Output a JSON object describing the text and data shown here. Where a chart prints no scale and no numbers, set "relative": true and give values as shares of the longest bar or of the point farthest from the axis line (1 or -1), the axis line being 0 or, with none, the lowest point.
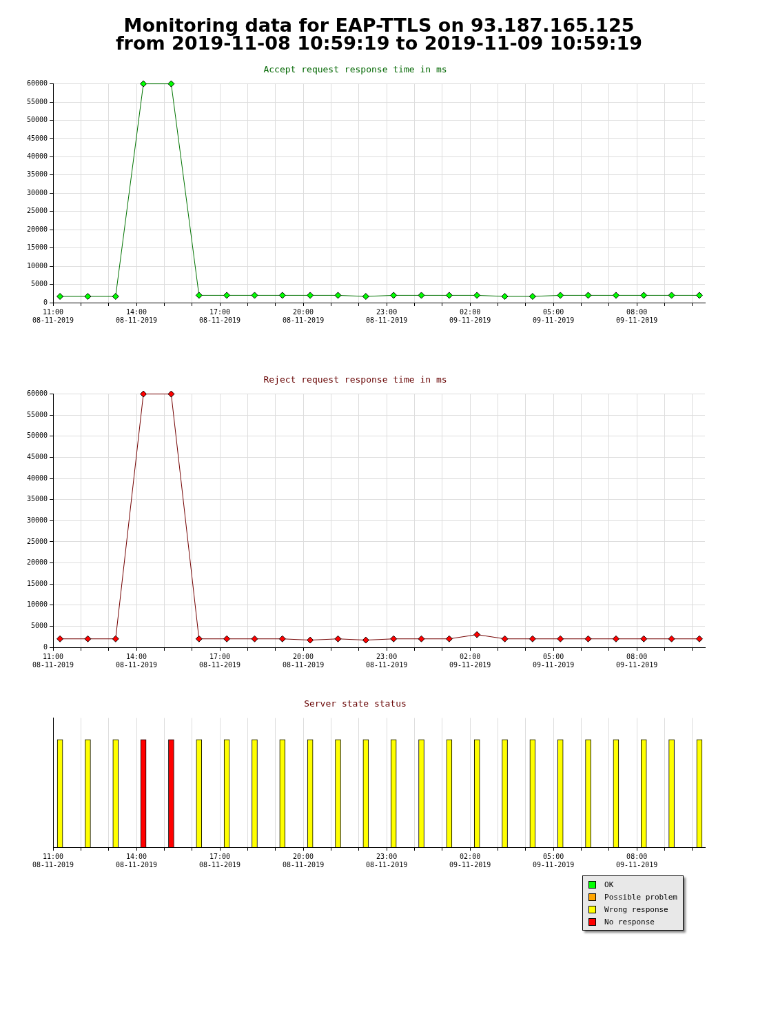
{
  "chart_data": [
    {
      "type": "other",
      "title": "Monitoring data for EAP-TTLS on 93.187.165.125",
      "subtitle": "from 2019-11-08 10:59:19 to 2019-11-09 10:59:19"
    },
    {
      "type": "line",
      "title": "Accept request response time in ms",
      "marker": "diamond",
      "grid": true,
      "legend": false,
      "x": [
        "2019-11-08T11:15",
        "2019-11-08T12:15",
        "2019-11-08T13:15",
        "2019-11-08T14:15",
        "2019-11-08T15:15",
        "2019-11-08T16:15",
        "2019-11-08T17:15",
        "2019-11-08T18:15",
        "2019-11-08T19:15",
        "2019-11-08T20:15",
        "2019-11-08T21:15",
        "2019-11-08T22:15",
        "2019-11-08T23:15",
        "2019-11-09T00:15",
        "2019-11-09T01:15",
        "2019-11-09T02:15",
        "2019-11-09T03:15",
        "2019-11-09T04:15",
        "2019-11-09T05:15",
        "2019-11-09T06:15",
        "2019-11-09T07:15",
        "2019-11-09T08:15",
        "2019-11-09T09:15",
        "2019-11-09T10:15"
      ],
      "xlim": [
        "2019-11-08T11:00",
        "2019-11-09T10:27"
      ],
      "xticks": [
        {
          "value": "2019-11-08T11:00",
          "label": "11:00\n08-11-2019"
        },
        {
          "value": "2019-11-08T12:00",
          "label": null
        },
        {
          "value": "2019-11-08T13:00",
          "label": null
        },
        {
          "value": "2019-11-08T14:00",
          "label": "14:00\n08-11-2019"
        },
        {
          "value": "2019-11-08T15:00",
          "label": null
        },
        {
          "value": "2019-11-08T16:00",
          "label": null
        },
        {
          "value": "2019-11-08T17:00",
          "label": "17:00\n08-11-2019"
        },
        {
          "value": "2019-11-08T18:00",
          "label": null
        },
        {
          "value": "2019-11-08T19:00",
          "label": null
        },
        {
          "value": "2019-11-08T20:00",
          "label": "20:00\n08-11-2019"
        },
        {
          "value": "2019-11-08T21:00",
          "label": null
        },
        {
          "value": "2019-11-08T22:00",
          "label": null
        },
        {
          "value": "2019-11-08T23:00",
          "label": "23:00\n08-11-2019"
        },
        {
          "value": "2019-11-09T00:00",
          "label": null
        },
        {
          "value": "2019-11-09T01:00",
          "label": null
        },
        {
          "value": "2019-11-09T02:00",
          "label": "02:00\n09-11-2019"
        },
        {
          "value": "2019-11-09T03:00",
          "label": null
        },
        {
          "value": "2019-11-09T04:00",
          "label": null
        },
        {
          "value": "2019-11-09T05:00",
          "label": "05:00\n09-11-2019"
        },
        {
          "value": "2019-11-09T06:00",
          "label": null
        },
        {
          "value": "2019-11-09T07:00",
          "label": null
        },
        {
          "value": "2019-11-09T08:00",
          "label": "08:00\n09-11-2019"
        },
        {
          "value": "2019-11-09T09:00",
          "label": null
        },
        {
          "value": "2019-11-09T10:00",
          "label": null
        }
      ],
      "ylim": [
        0,
        60000
      ],
      "yticks": [
        0,
        5000,
        10000,
        15000,
        20000,
        25000,
        30000,
        35000,
        40000,
        45000,
        50000,
        55000,
        60000
      ],
      "series": [
        {
          "color": "#00ff00",
          "values": [
            1700,
            1700,
            1700,
            60000,
            60000,
            2000,
            2000,
            2000,
            2000,
            2000,
            2000,
            1700,
            2000,
            2000,
            2000,
            2000,
            1700,
            1700,
            2000,
            2000,
            2000,
            2000,
            2000,
            2000
          ]
        }
      ]
    },
    {
      "type": "line",
      "title": "Reject request response time in ms",
      "marker": "diamond",
      "grid": true,
      "legend": false,
      "x": [
        "2019-11-08T11:15",
        "2019-11-08T12:15",
        "2019-11-08T13:15",
        "2019-11-08T14:15",
        "2019-11-08T15:15",
        "2019-11-08T16:15",
        "2019-11-08T17:15",
        "2019-11-08T18:15",
        "2019-11-08T19:15",
        "2019-11-08T20:15",
        "2019-11-08T21:15",
        "2019-11-08T22:15",
        "2019-11-08T23:15",
        "2019-11-09T00:15",
        "2019-11-09T01:15",
        "2019-11-09T02:15",
        "2019-11-09T03:15",
        "2019-11-09T04:15",
        "2019-11-09T05:15",
        "2019-11-09T06:15",
        "2019-11-09T07:15",
        "2019-11-09T08:15",
        "2019-11-09T09:15",
        "2019-11-09T10:15"
      ],
      "xlim": [
        "2019-11-08T11:00",
        "2019-11-09T10:27"
      ],
      "xticks": [
        {
          "value": "2019-11-08T11:00",
          "label": "11:00\n08-11-2019"
        },
        {
          "value": "2019-11-08T12:00",
          "label": null
        },
        {
          "value": "2019-11-08T13:00",
          "label": null
        },
        {
          "value": "2019-11-08T14:00",
          "label": "14:00\n08-11-2019"
        },
        {
          "value": "2019-11-08T15:00",
          "label": null
        },
        {
          "value": "2019-11-08T16:00",
          "label": null
        },
        {
          "value": "2019-11-08T17:00",
          "label": "17:00\n08-11-2019"
        },
        {
          "value": "2019-11-08T18:00",
          "label": null
        },
        {
          "value": "2019-11-08T19:00",
          "label": null
        },
        {
          "value": "2019-11-08T20:00",
          "label": "20:00\n08-11-2019"
        },
        {
          "value": "2019-11-08T21:00",
          "label": null
        },
        {
          "value": "2019-11-08T22:00",
          "label": null
        },
        {
          "value": "2019-11-08T23:00",
          "label": "23:00\n08-11-2019"
        },
        {
          "value": "2019-11-09T00:00",
          "label": null
        },
        {
          "value": "2019-11-09T01:00",
          "label": null
        },
        {
          "value": "2019-11-09T02:00",
          "label": "02:00\n09-11-2019"
        },
        {
          "value": "2019-11-09T03:00",
          "label": null
        },
        {
          "value": "2019-11-09T04:00",
          "label": null
        },
        {
          "value": "2019-11-09T05:00",
          "label": "05:00\n09-11-2019"
        },
        {
          "value": "2019-11-09T06:00",
          "label": null
        },
        {
          "value": "2019-11-09T07:00",
          "label": null
        },
        {
          "value": "2019-11-09T08:00",
          "label": "08:00\n09-11-2019"
        },
        {
          "value": "2019-11-09T09:00",
          "label": null
        },
        {
          "value": "2019-11-09T10:00",
          "label": null
        }
      ],
      "ylim": [
        0,
        60000
      ],
      "yticks": [
        0,
        5000,
        10000,
        15000,
        20000,
        25000,
        30000,
        35000,
        40000,
        45000,
        50000,
        55000,
        60000
      ],
      "series": [
        {
          "color": "#ff0000",
          "values": [
            2000,
            2000,
            2000,
            60000,
            60000,
            2000,
            2000,
            2000,
            2000,
            1700,
            2000,
            1700,
            2000,
            2000,
            2000,
            3000,
            2000,
            2000,
            2000,
            2000,
            2000,
            2000,
            2000,
            2000
          ]
        }
      ]
    },
    {
      "type": "bar",
      "title": "Server state status",
      "relative": true,
      "grid": "x",
      "legend": "bottom right",
      "x": [
        "2019-11-08T11:15",
        "2019-11-08T12:15",
        "2019-11-08T13:15",
        "2019-11-08T14:15",
        "2019-11-08T15:15",
        "2019-11-08T16:15",
        "2019-11-08T17:15",
        "2019-11-08T18:15",
        "2019-11-08T19:15",
        "2019-11-08T20:15",
        "2019-11-08T21:15",
        "2019-11-08T22:15",
        "2019-11-08T23:15",
        "2019-11-09T00:15",
        "2019-11-09T01:15",
        "2019-11-09T02:15",
        "2019-11-09T03:15",
        "2019-11-09T04:15",
        "2019-11-09T05:15",
        "2019-11-09T06:15",
        "2019-11-09T07:15",
        "2019-11-09T08:15",
        "2019-11-09T09:15",
        "2019-11-09T10:15"
      ],
      "xlim": [
        "2019-11-08T11:00",
        "2019-11-09T10:27"
      ],
      "xticks": [
        {
          "value": "2019-11-08T11:00",
          "label": "11:00\n08-11-2019"
        },
        {
          "value": "2019-11-08T12:00",
          "label": null
        },
        {
          "value": "2019-11-08T13:00",
          "label": null
        },
        {
          "value": "2019-11-08T14:00",
          "label": "14:00\n08-11-2019"
        },
        {
          "value": "2019-11-08T15:00",
          "label": null
        },
        {
          "value": "2019-11-08T16:00",
          "label": null
        },
        {
          "value": "2019-11-08T17:00",
          "label": "17:00\n08-11-2019"
        },
        {
          "value": "2019-11-08T18:00",
          "label": null
        },
        {
          "value": "2019-11-08T19:00",
          "label": null
        },
        {
          "value": "2019-11-08T20:00",
          "label": "20:00\n08-11-2019"
        },
        {
          "value": "2019-11-08T21:00",
          "label": null
        },
        {
          "value": "2019-11-08T22:00",
          "label": null
        },
        {
          "value": "2019-11-08T23:00",
          "label": "23:00\n08-11-2019"
        },
        {
          "value": "2019-11-09T00:00",
          "label": null
        },
        {
          "value": "2019-11-09T01:00",
          "label": null
        },
        {
          "value": "2019-11-09T02:00",
          "label": "02:00\n09-11-2019"
        },
        {
          "value": "2019-11-09T03:00",
          "label": null
        },
        {
          "value": "2019-11-09T04:00",
          "label": null
        },
        {
          "value": "2019-11-09T05:00",
          "label": "05:00\n09-11-2019"
        },
        {
          "value": "2019-11-09T06:00",
          "label": null
        },
        {
          "value": "2019-11-09T07:00",
          "label": null
        },
        {
          "value": "2019-11-09T08:00",
          "label": "08:00\n09-11-2019"
        },
        {
          "value": "2019-11-09T09:00",
          "label": null
        },
        {
          "value": "2019-11-09T10:00",
          "label": null
        }
      ],
      "series": [
        {
          "name": "OK",
          "color": "#00ff00",
          "values": [
            null,
            null,
            null,
            null,
            null,
            null,
            null,
            null,
            null,
            null,
            null,
            null,
            null,
            null,
            null,
            null,
            null,
            null,
            null,
            null,
            null,
            null,
            null,
            null
          ]
        },
        {
          "name": "Possible problem",
          "color": "#ffa500",
          "values": [
            null,
            null,
            null,
            null,
            null,
            null,
            null,
            null,
            null,
            null,
            null,
            null,
            null,
            null,
            null,
            null,
            null,
            null,
            null,
            null,
            null,
            null,
            null,
            null
          ]
        },
        {
          "name": "Wrong response",
          "color": "#ffff00",
          "values": [
            1,
            1,
            1,
            null,
            null,
            1,
            1,
            1,
            1,
            1,
            1,
            1,
            1,
            1,
            1,
            1,
            1,
            1,
            1,
            1,
            1,
            1,
            1,
            1
          ]
        },
        {
          "name": "No response",
          "color": "#ff0000",
          "values": [
            null,
            null,
            null,
            1,
            1,
            null,
            null,
            null,
            null,
            null,
            null,
            null,
            null,
            null,
            null,
            null,
            null,
            null,
            null,
            null,
            null,
            null,
            null,
            null
          ]
        }
      ]
    }
  ]
}
